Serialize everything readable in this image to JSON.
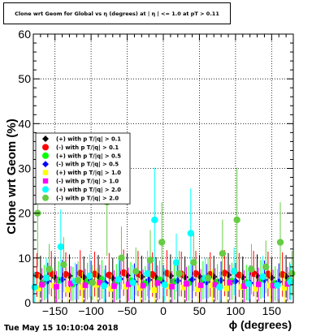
{
  "header": {
    "title": "Clone wrt Geom for Global vs η (degrees) at | η | <= 1.0 at pT > 0.11"
  },
  "footer": {
    "timestamp": "Tue May 15 10:10:04 2018"
  },
  "chart_data": {
    "type": "scatter",
    "title": "Clone wrt Geom for Global vs η (degrees) at | η | <= 1.0 at pT > 0.11",
    "xlabel": "ϕ (degrees)",
    "ylabel": "Clone wrt  Geom (%)",
    "xlim": [
      -180,
      180
    ],
    "ylim": [
      0,
      60
    ],
    "xticks": [
      -150,
      -100,
      -50,
      0,
      50,
      100,
      150
    ],
    "yticks": [
      0,
      10,
      20,
      30,
      40,
      50,
      60
    ],
    "grid": true,
    "legend_position": "left-middle",
    "colors": {
      "pos_01": "#000000",
      "neg_01": "#ff0000",
      "pos_05": "#00ff00",
      "neg_05": "#0000ff",
      "pos_10": "#ffff00",
      "neg_10": "#ff00ff",
      "pos_20": "#00ffff",
      "neg_20": "#66cc44"
    },
    "series": [
      {
        "name": "(+) with p T/|q| > 0.1",
        "marker": "diamond",
        "color": "#000000",
        "x": [
          -170,
          -150,
          -130,
          -110,
          -90,
          -70,
          -50,
          -30,
          -10,
          10,
          30,
          50,
          70,
          90,
          110,
          130,
          150,
          170
        ],
        "y": [
          5.8,
          5.6,
          6.0,
          5.7,
          5.9,
          5.5,
          6.1,
          5.8,
          5.6,
          6.0,
          5.7,
          5.9,
          5.8,
          6.2,
          5.7,
          6.0,
          5.6,
          5.9
        ]
      },
      {
        "name": "(-) with p T/|q| > 0.1",
        "marker": "circle",
        "color": "#ff0000",
        "x": [
          -175,
          -155,
          -135,
          -115,
          -95,
          -75,
          -55,
          -35,
          -15,
          5,
          25,
          45,
          65,
          85,
          105,
          125,
          145,
          165
        ],
        "y": [
          6.2,
          6.5,
          6.3,
          6.6,
          6.4,
          6.2,
          6.7,
          6.5,
          6.3,
          6.6,
          6.4,
          6.5,
          6.3,
          6.6,
          6.2,
          6.5,
          6.4,
          6.3
        ]
      },
      {
        "name": "(+) with p T/|q| > 0.5",
        "marker": "circle",
        "color": "#00ff00",
        "x": [
          -165,
          -145,
          -125,
          -105,
          -85,
          -65,
          -45,
          -25,
          -5,
          15,
          35,
          55,
          75,
          95,
          115,
          135,
          155,
          175
        ],
        "y": [
          4.5,
          5.0,
          4.2,
          4.8,
          5.2,
          4.6,
          4.9,
          4.3,
          5.1,
          4.7,
          4.4,
          5.0,
          4.6,
          4.8,
          4.5,
          5.2,
          4.3,
          4.9
        ]
      },
      {
        "name": "(-) with p T/|q| > 0.5",
        "marker": "diamond",
        "color": "#0000ff",
        "x": [
          -160,
          -140,
          -120,
          -100,
          -80,
          -60,
          -40,
          -20,
          0,
          20,
          40,
          60,
          80,
          100,
          120,
          140,
          160
        ],
        "y": [
          4.8,
          5.2,
          4.6,
          5.0,
          4.4,
          5.3,
          4.7,
          5.1,
          4.5,
          4.9,
          5.2,
          4.6,
          5.0,
          4.8,
          4.4,
          5.1,
          4.7
        ]
      },
      {
        "name": "(+) with p T/|q| > 1.0",
        "marker": "square",
        "color": "#ffff00",
        "x": [
          -172,
          -152,
          -132,
          -112,
          -92,
          -72,
          -52,
          -32,
          -12,
          8,
          28,
          48,
          68,
          88,
          108,
          128,
          148,
          168
        ],
        "y": [
          3.2,
          3.8,
          2.9,
          3.5,
          4.0,
          3.1,
          3.6,
          3.3,
          2.8,
          3.7,
          3.4,
          3.0,
          3.9,
          3.2,
          3.5,
          3.1,
          3.8,
          3.3
        ]
      },
      {
        "name": "(-) with p T/|q| > 1.0",
        "marker": "square",
        "color": "#ff00ff",
        "x": [
          -168,
          -148,
          -128,
          -108,
          -88,
          -68,
          -48,
          -28,
          -8,
          12,
          32,
          52,
          72,
          92,
          112,
          132,
          152,
          172
        ],
        "y": [
          4.0,
          3.6,
          4.3,
          3.9,
          4.5,
          3.7,
          4.1,
          3.8,
          4.4,
          3.6,
          4.2,
          3.9,
          4.0,
          4.5,
          3.7,
          4.1,
          3.8,
          4.2
        ]
      },
      {
        "name": "(+) with p T/|q| > 2.0",
        "marker": "circle",
        "color": "#00ffff",
        "x": [
          -178,
          -162,
          -142,
          -122,
          -102,
          -82,
          -62,
          -42,
          -22,
          -12,
          2,
          18,
          38,
          58,
          78,
          98,
          118,
          138,
          158,
          176
        ],
        "y": [
          3.5,
          5.5,
          12.5,
          4.8,
          6.0,
          3.8,
          5.2,
          4.5,
          6.5,
          18.5,
          4.0,
          9.0,
          15.5,
          5.5,
          3.5,
          7.0,
          4.2,
          5.8,
          3.9,
          4.6
        ]
      },
      {
        "name": "(-) with p T/|q| > 2.0",
        "marker": "circle",
        "color": "#66cc44",
        "x": [
          -174,
          -158,
          -138,
          -118,
          -98,
          -78,
          -58,
          -38,
          -18,
          -2,
          22,
          42,
          62,
          82,
          102,
          122,
          142,
          162,
          178
        ],
        "y": [
          20.0,
          7.5,
          8.5,
          5.0,
          4.5,
          22.5,
          10.0,
          7.0,
          9.5,
          13.5,
          6.5,
          9.0,
          5.5,
          11.0,
          18.5,
          7.5,
          8.0,
          13.5,
          6.5
        ]
      }
    ]
  }
}
